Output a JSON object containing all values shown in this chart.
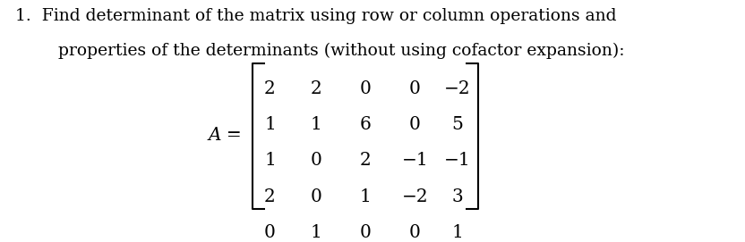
{
  "line1": "1.  Find determinant of the matrix using row or column operations and",
  "line2": "properties of the determinants (without using cofactor expansion):",
  "matrix_label": "A =",
  "matrix": [
    [
      2,
      2,
      0,
      0,
      -2
    ],
    [
      1,
      1,
      6,
      0,
      5
    ],
    [
      1,
      0,
      2,
      -1,
      -1
    ],
    [
      2,
      0,
      1,
      -2,
      3
    ],
    [
      0,
      1,
      0,
      0,
      1
    ]
  ],
  "bg_color": "#ffffff",
  "text_color": "#000000",
  "font_size_text": 13.5,
  "font_size_matrix": 14.5
}
